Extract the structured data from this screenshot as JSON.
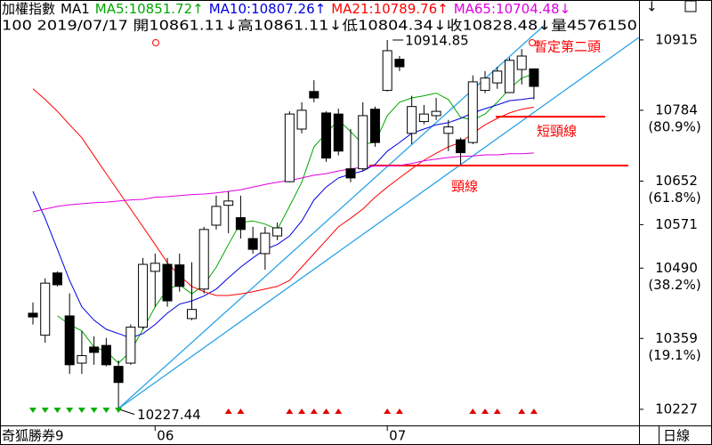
{
  "chart_data": {
    "type": "candlestick",
    "header_line1": [
      {
        "text": "加權指數",
        "color": "#000000"
      },
      {
        "text": "MA1",
        "color": "#000000"
      },
      {
        "text": "MA5:10851.72↑",
        "color": "#00a800"
      },
      {
        "text": "MA10:10807.26↑",
        "color": "#0000e0"
      },
      {
        "text": "MA21:10789.76↑",
        "color": "#ff0000"
      },
      {
        "text": "MA65:10704.48↓",
        "color": "#e000e0"
      }
    ],
    "header_line2": "100 2019/07/17 開10861.11↓高10861.11↓低10804.34↓收10828.48↓量4576150",
    "categories": [
      null,
      null,
      null,
      null,
      null,
      null,
      null,
      null,
      null,
      null,
      "06",
      null,
      null,
      null,
      null,
      null,
      null,
      null,
      null,
      null,
      null,
      null,
      null,
      null,
      null,
      null,
      null,
      null,
      null,
      "07",
      null,
      null,
      null,
      null,
      null,
      null,
      null,
      null,
      null,
      null,
      null,
      null
    ],
    "open": [
      10406,
      10365,
      10481,
      10401,
      10313,
      10343,
      10346,
      10307,
      10313,
      10380,
      10484,
      10497,
      10496,
      10396,
      10451,
      10570,
      10607,
      10584,
      10545,
      10517,
      10550,
      10651,
      10749,
      10819,
      10779,
      10777,
      10675,
      10675,
      10786,
      10821,
      10879,
      10741,
      10763,
      10774,
      10741,
      10729,
      10724,
      10821,
      10835,
      10817,
      10860,
      10861.11
    ],
    "high": [
      10426,
      10471,
      10484,
      10443,
      10373,
      10363,
      10360,
      10318,
      10385,
      10509,
      10517,
      10509,
      10517,
      10501,
      10567,
      10625,
      10633,
      10625,
      10567,
      10567,
      10575,
      10782,
      10799,
      10840,
      10782,
      10787,
      10749,
      10799,
      10791,
      10914.85,
      10885,
      10811,
      10794,
      10807,
      10766,
      10733,
      10849,
      10857,
      10865,
      10882,
      10898,
      10861.11
    ],
    "low": [
      10385,
      10351,
      10456,
      10293,
      10293,
      10310,
      10307,
      10227.44,
      10310,
      10376,
      10418,
      10418,
      10446,
      10393,
      10443,
      10562,
      10555,
      10545,
      10517,
      10487,
      10542,
      10650,
      10741,
      10799,
      10688,
      10700,
      10650,
      10671,
      10716,
      10819,
      10857,
      10721,
      10758,
      10766,
      10708,
      10683,
      10721,
      10816,
      10824,
      10816,
      10832,
      10804.34
    ],
    "close": [
      10399,
      10462,
      10459,
      10310,
      10327,
      10333,
      10310,
      10277,
      10380,
      10497,
      10499,
      10429,
      10456,
      10413,
      10562,
      10605,
      10615,
      10562,
      10525,
      10555,
      10565,
      10777,
      10784,
      10807,
      10695,
      10708,
      10658,
      10774,
      10724,
      10895,
      10865,
      10791,
      10777,
      10782,
      10753,
      10705,
      10837,
      10844,
      10857,
      10877,
      10885,
      10828.48
    ],
    "up_color": "#ffffff",
    "down_color": "#000000",
    "ma": [
      {
        "color": "#00a800",
        "values": [
          null,
          null,
          10401,
          10385,
          10373,
          10343,
          10335,
          10313,
          10335,
          10376,
          10418,
          10451,
          10459,
          10442,
          10459,
          10492,
          10534,
          10575,
          10578,
          10572,
          10562,
          10605,
          10650,
          10716,
          10741,
          10766,
          10744,
          10721,
          10724,
          10774,
          10799,
          10807,
          10811,
          10816,
          10804,
          10771,
          10766,
          10777,
          10799,
          10824,
          10844,
          10851.72
        ]
      },
      {
        "color": "#0000e0",
        "values": [
          10633,
          10583,
          10525,
          10467,
          10418,
          10393,
          10376,
          10368,
          10360,
          10368,
          10385,
          10406,
          10423,
          10429,
          10438,
          10451,
          10472,
          10492,
          10509,
          10525,
          10534,
          10550,
          10578,
          10617,
          10641,
          10658,
          10665,
          10671,
          10683,
          10708,
          10724,
          10741,
          10749,
          10757,
          10761,
          10769,
          10779,
          10787,
          10794,
          10802,
          10804,
          10807.26
        ]
      },
      {
        "color": "#ff0000",
        "values": [
          10824,
          10804,
          10782,
          10757,
          10733,
          10699,
          10666,
          10633,
          10600,
          10567,
          10534,
          10500,
          10476,
          10456,
          10446,
          10439,
          10439,
          10442,
          10446,
          10451,
          10456,
          10467,
          10492,
          10517,
          10542,
          10567,
          10583,
          10600,
          10622,
          10641,
          10658,
          10675,
          10691,
          10704,
          10716,
          10724,
          10741,
          10757,
          10769,
          10779,
          10786,
          10789.76
        ]
      },
      {
        "color": "#e000e0",
        "values": [
          10595,
          10600,
          10605,
          10608,
          10610,
          10612,
          10613,
          10615,
          10617,
          10618,
          10622,
          10623,
          10625,
          10627,
          10628,
          10630,
          10633,
          10636,
          10641,
          10646,
          10650,
          10653,
          10658,
          10663,
          10666,
          10671,
          10675,
          10678,
          10680,
          10680,
          10681,
          10685,
          10690,
          10693,
          10696,
          10698,
          10699,
          10701,
          10701,
          10703,
          10703,
          10704.48
        ]
      }
    ],
    "ylim": [
      10197,
      10943
    ],
    "yticks": [
      10227,
      10359,
      10490,
      10571,
      10652,
      10784,
      10915
    ],
    "ratio_labels": [
      {
        "value": 10784,
        "label": "(80.9%)"
      },
      {
        "value": 10652,
        "label": "(61.8%)"
      },
      {
        "value": 10490,
        "label": "(38.2%)"
      },
      {
        "value": 10359,
        "label": "(19.1%)"
      }
    ],
    "levels": [
      {
        "label": "短頸線",
        "value": 10772,
        "color": "#ff0000"
      },
      {
        "label": "頸線",
        "value": 10681,
        "color": "#ff0000"
      }
    ],
    "annotations": [
      "暫定第二頭"
    ],
    "footer": "奇狐勝券9",
    "period": "日線"
  }
}
